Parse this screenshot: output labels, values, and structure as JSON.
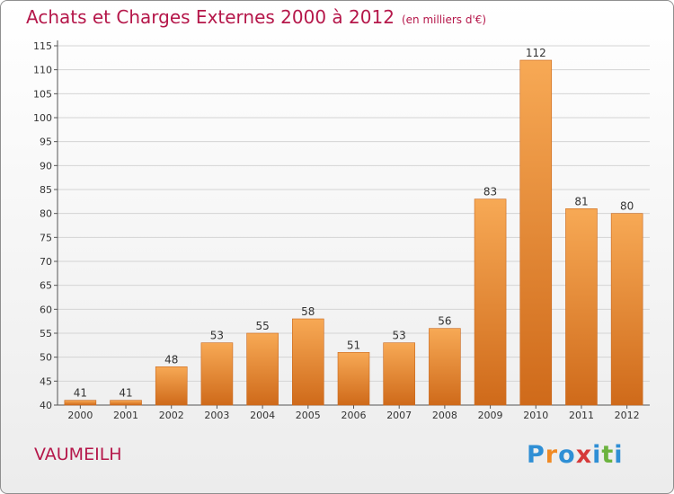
{
  "header": {
    "title": "Achats et Charges Externes 2000 à 2012",
    "subtitle": "(en milliers d'€)"
  },
  "footer": {
    "place": "VAUMEILH",
    "logo": "Proxiti"
  },
  "colors": {
    "title": "#b5174a",
    "bar_light": "#f7a955",
    "bar_dark": "#cf6a1a"
  },
  "logo_letters": [
    {
      "ch": "P",
      "color": "#2f8fd5"
    },
    {
      "ch": "r",
      "color": "#f08a24"
    },
    {
      "ch": "o",
      "color": "#2f8fd5"
    },
    {
      "ch": "x",
      "color": "#d63a3a"
    },
    {
      "ch": "i",
      "color": "#2f8fd5"
    },
    {
      "ch": "t",
      "color": "#6cb33f"
    },
    {
      "ch": "i",
      "color": "#2f8fd5"
    }
  ],
  "chart_data": {
    "type": "bar",
    "categories": [
      "2000",
      "2001",
      "2002",
      "2003",
      "2004",
      "2005",
      "2006",
      "2007",
      "2008",
      "2009",
      "2010",
      "2011",
      "2012"
    ],
    "values": [
      41,
      41,
      48,
      53,
      55,
      58,
      51,
      53,
      56,
      83,
      112,
      81,
      80
    ],
    "ylim": [
      40,
      115
    ],
    "yticks": [
      40,
      45,
      50,
      55,
      60,
      65,
      70,
      75,
      80,
      85,
      90,
      95,
      100,
      105,
      110,
      115
    ],
    "grid": true,
    "data_labels": true
  }
}
